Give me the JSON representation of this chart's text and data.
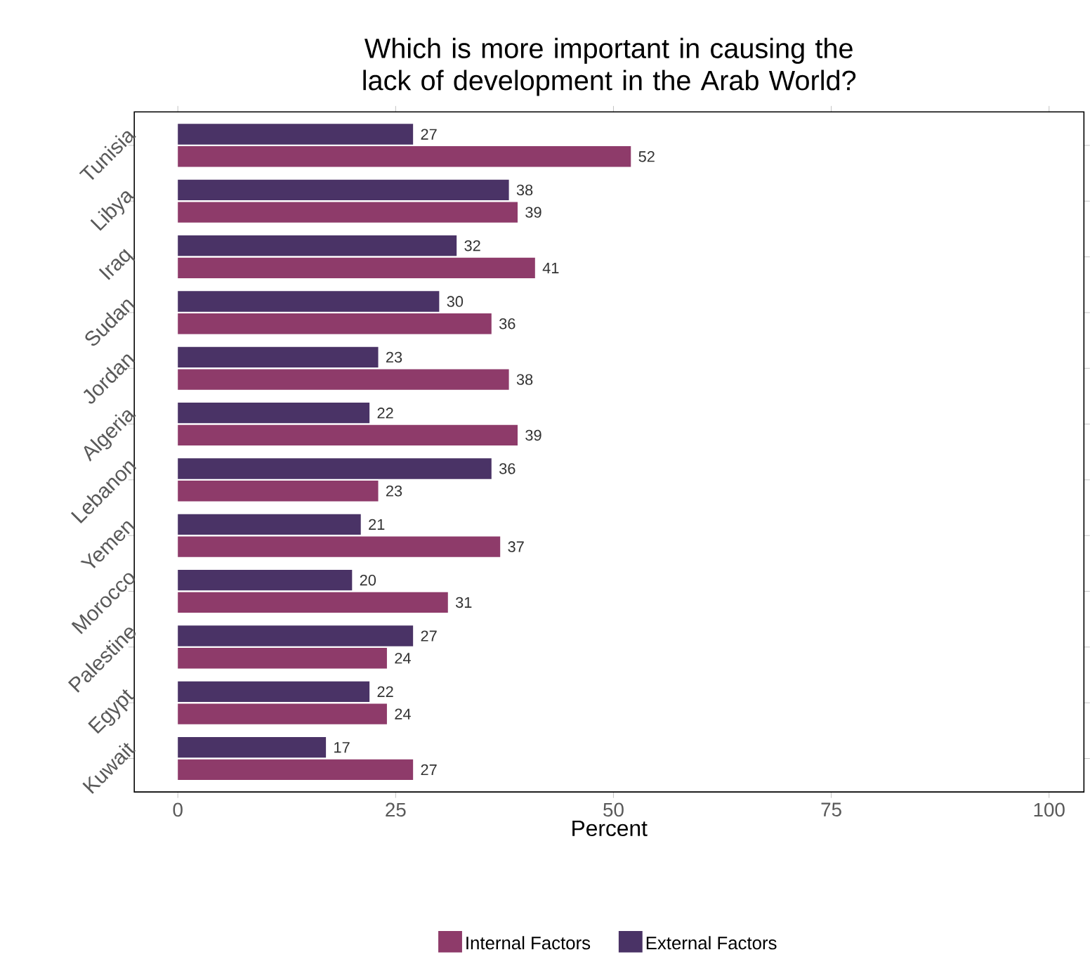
{
  "chart_data": {
    "type": "bar",
    "orientation": "horizontal",
    "title": "Which is more important in causing the lack of development in the Arab World?",
    "xlabel": "Percent",
    "categories": [
      "Tunisia",
      "Libya",
      "Iraq",
      "Sudan",
      "Jordan",
      "Algeria",
      "Lebanon",
      "Yemen",
      "Morocco",
      "Palestine",
      "Egypt",
      "Kuwait"
    ],
    "series": [
      {
        "name": "External Factors",
        "color": "#4a3366",
        "values": [
          27,
          38,
          32,
          30,
          23,
          22,
          36,
          21,
          20,
          27,
          22,
          17
        ]
      },
      {
        "name": "Internal Factors",
        "color": "#8e3b6a",
        "values": [
          52,
          39,
          41,
          36,
          38,
          39,
          23,
          37,
          31,
          24,
          24,
          27
        ]
      }
    ],
    "xlim": [
      -5,
      104
    ],
    "xticks": [
      0,
      25,
      50,
      75,
      100
    ],
    "data_labels": true,
    "legend": "bottom",
    "grid": false
  }
}
